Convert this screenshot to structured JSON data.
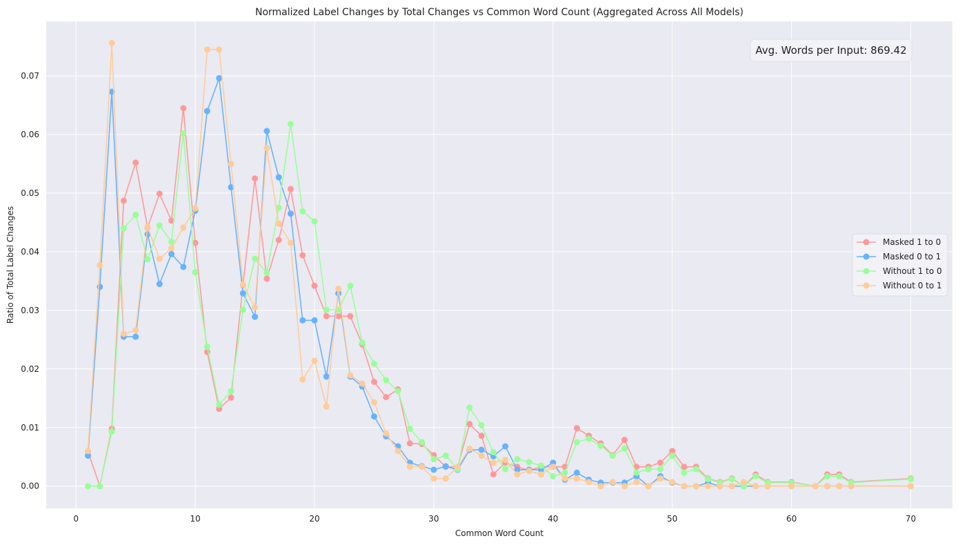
{
  "chart_data": {
    "type": "line",
    "title": "Normalized Label Changes by Total Changes vs Common Word Count (Aggregated Across All Models)",
    "xlabel": "Common Word Count",
    "ylabel": "Ratio of Total Label Changes",
    "xlim": [
      -2.5,
      73.5
    ],
    "ylim": [
      -0.0038,
      0.0793
    ],
    "xticks": [
      0,
      10,
      20,
      30,
      40,
      50,
      60,
      70
    ],
    "yticks": [
      0.0,
      0.01,
      0.02,
      0.03,
      0.04,
      0.05,
      0.06,
      0.07
    ],
    "ytick_labels": [
      "0.00",
      "0.01",
      "0.02",
      "0.03",
      "0.04",
      "0.05",
      "0.06",
      "0.07"
    ],
    "grid": true,
    "legend_position": "center-right",
    "annotation": "Avg. Words per Input: 869.42",
    "series": [
      {
        "name": "Masked 1 to 0",
        "color": "#ff9999",
        "x": [
          1,
          2,
          3,
          4,
          5,
          6,
          7,
          8,
          9,
          10,
          11,
          12,
          13,
          14,
          15,
          16,
          17,
          18,
          19,
          20,
          21,
          22,
          23,
          24,
          25,
          26,
          27,
          28,
          29,
          30,
          31,
          32,
          33,
          34,
          35,
          36,
          37,
          38,
          39,
          40,
          41,
          42,
          43,
          44,
          45,
          46,
          47,
          48,
          49,
          50,
          51,
          52,
          53,
          54,
          55,
          56,
          57,
          58,
          60,
          62,
          63,
          64,
          65,
          70
        ],
        "y": [
          0.0059,
          0.0,
          0.0098,
          0.0487,
          0.0552,
          0.0441,
          0.0499,
          0.0453,
          0.0645,
          0.0415,
          0.0229,
          0.0132,
          0.0151,
          0.0343,
          0.0525,
          0.0354,
          0.042,
          0.0507,
          0.0394,
          0.0342,
          0.029,
          0.029,
          0.029,
          0.0242,
          0.0178,
          0.0152,
          0.0165,
          0.0073,
          0.0072,
          0.0053,
          0.0033,
          0.0033,
          0.0106,
          0.0086,
          0.002,
          0.004,
          0.0033,
          0.0027,
          0.0033,
          0.0033,
          0.0033,
          0.0099,
          0.0086,
          0.0073,
          0.0053,
          0.0079,
          0.0033,
          0.0033,
          0.004,
          0.006,
          0.0033,
          0.0033,
          0.0013,
          0.0007,
          0.0013,
          0.0,
          0.002,
          0.0007,
          0.0007,
          0.0,
          0.002,
          0.002,
          0.0007,
          0.0013
        ]
      },
      {
        "name": "Masked 0 to 1",
        "color": "#66b3ff",
        "x": [
          1,
          2,
          3,
          4,
          5,
          6,
          7,
          8,
          9,
          10,
          11,
          12,
          13,
          14,
          15,
          16,
          17,
          18,
          19,
          20,
          21,
          22,
          23,
          24,
          25,
          26,
          27,
          28,
          29,
          30,
          31,
          32,
          33,
          34,
          35,
          36,
          37,
          38,
          39,
          40,
          41,
          42,
          43,
          44,
          45,
          46,
          47,
          48,
          49,
          50,
          51,
          52,
          53,
          54,
          55,
          56,
          57,
          58,
          60,
          62,
          63,
          64,
          65,
          70
        ],
        "y": [
          0.0052,
          0.034,
          0.0673,
          0.0255,
          0.0255,
          0.043,
          0.0345,
          0.0396,
          0.0374,
          0.047,
          0.064,
          0.0696,
          0.051,
          0.0329,
          0.0289,
          0.0606,
          0.0527,
          0.0465,
          0.0283,
          0.0283,
          0.0187,
          0.0329,
          0.0187,
          0.017,
          0.0119,
          0.0085,
          0.0068,
          0.004,
          0.0034,
          0.0028,
          0.0034,
          0.0028,
          0.0062,
          0.0062,
          0.0051,
          0.0068,
          0.0028,
          0.0028,
          0.0028,
          0.004,
          0.0011,
          0.0023,
          0.0011,
          0.0006,
          0.0006,
          0.0006,
          0.0017,
          0.0,
          0.0017,
          0.0006,
          0.0,
          0.0,
          0.0006,
          0.0,
          0.0,
          0.0,
          0.0,
          0.0,
          0.0,
          0.0,
          0.0,
          0.0,
          0.0,
          0.0
        ]
      },
      {
        "name": "Without 1 to 0",
        "color": "#99ff99",
        "x": [
          1,
          2,
          3,
          4,
          5,
          6,
          7,
          8,
          9,
          10,
          11,
          12,
          13,
          14,
          15,
          16,
          17,
          18,
          19,
          20,
          21,
          22,
          23,
          24,
          25,
          26,
          27,
          28,
          29,
          30,
          31,
          32,
          33,
          34,
          35,
          36,
          37,
          38,
          39,
          40,
          41,
          42,
          43,
          44,
          45,
          46,
          47,
          48,
          49,
          50,
          51,
          52,
          53,
          54,
          55,
          56,
          57,
          58,
          60,
          62,
          63,
          64,
          65,
          70
        ],
        "y": [
          0.0,
          0.0,
          0.0093,
          0.044,
          0.0463,
          0.0387,
          0.0445,
          0.0417,
          0.0602,
          0.0365,
          0.0238,
          0.0139,
          0.0162,
          0.0301,
          0.0388,
          0.0364,
          0.0475,
          0.0618,
          0.0469,
          0.0452,
          0.0301,
          0.0301,
          0.0342,
          0.0245,
          0.0209,
          0.0181,
          0.0162,
          0.0098,
          0.0075,
          0.0046,
          0.0052,
          0.0029,
          0.0134,
          0.0104,
          0.0058,
          0.0029,
          0.0046,
          0.0041,
          0.0035,
          0.0017,
          0.0023,
          0.0075,
          0.0081,
          0.0069,
          0.0052,
          0.0064,
          0.0023,
          0.0029,
          0.0029,
          0.0052,
          0.0023,
          0.0029,
          0.0012,
          0.0006,
          0.0012,
          0.0,
          0.0017,
          0.0006,
          0.0006,
          0.0,
          0.0017,
          0.0017,
          0.0006,
          0.0012
        ]
      },
      {
        "name": "Without 0 to 1",
        "color": "#ffcc99",
        "x": [
          1,
          2,
          3,
          4,
          5,
          6,
          7,
          8,
          9,
          10,
          11,
          12,
          13,
          14,
          15,
          16,
          17,
          18,
          19,
          20,
          21,
          22,
          23,
          24,
          25,
          26,
          27,
          28,
          29,
          30,
          31,
          32,
          33,
          34,
          35,
          36,
          37,
          38,
          39,
          40,
          41,
          42,
          43,
          44,
          45,
          46,
          47,
          48,
          49,
          50,
          51,
          52,
          53,
          54,
          55,
          56,
          57,
          58,
          60,
          62,
          63,
          64,
          65,
          70
        ],
        "y": [
          0.006,
          0.0377,
          0.0756,
          0.026,
          0.0266,
          0.0442,
          0.0388,
          0.0406,
          0.0441,
          0.0474,
          0.0745,
          0.0745,
          0.055,
          0.0344,
          0.0305,
          0.0577,
          0.0448,
          0.0415,
          0.0182,
          0.0214,
          0.0136,
          0.0337,
          0.0189,
          0.0175,
          0.0143,
          0.009,
          0.006,
          0.0033,
          0.0033,
          0.0013,
          0.0013,
          0.0033,
          0.0064,
          0.0052,
          0.004,
          0.0045,
          0.002,
          0.0026,
          0.002,
          0.0033,
          0.0013,
          0.0013,
          0.0007,
          0.0,
          0.0007,
          0.0,
          0.0007,
          0.0,
          0.0013,
          0.0007,
          0.0,
          0.0,
          0.0,
          0.0,
          0.0,
          0.0007,
          0.0,
          0.0,
          0.0,
          0.0,
          0.0,
          0.0,
          0.0,
          0.0
        ]
      }
    ]
  }
}
